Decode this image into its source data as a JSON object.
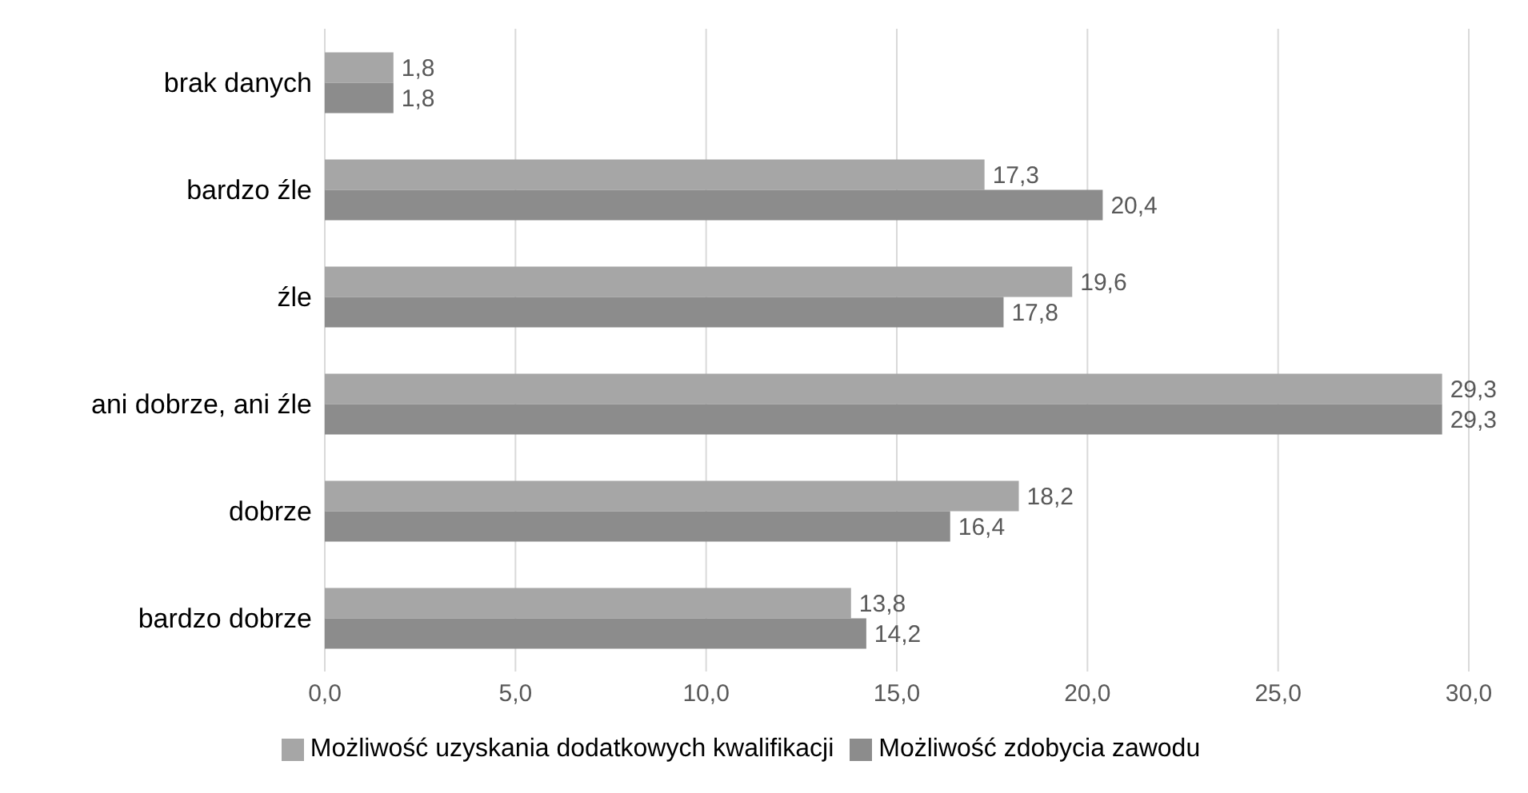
{
  "chart_data": {
    "type": "bar",
    "orientation": "horizontal",
    "categories": [
      "brak danych",
      "bardzo źle",
      "źle",
      "ani dobrze, ani źle",
      "dobrze",
      "bardzo dobrze"
    ],
    "series": [
      {
        "name": "Możliwość uzyskania dodatkowych kwalifikacji",
        "color": "#a6a6a6",
        "values": [
          1.8,
          17.3,
          19.6,
          29.3,
          18.2,
          13.8
        ],
        "value_labels": [
          "1,8",
          "17,3",
          "19,6",
          "29,3",
          "18,2",
          "13,8"
        ]
      },
      {
        "name": "Możliwość zdobycia zawodu",
        "color": "#8c8c8c",
        "values": [
          1.8,
          20.4,
          17.8,
          29.3,
          16.4,
          14.2
        ],
        "value_labels": [
          "1,8",
          "20,4",
          "17,8",
          "29,3",
          "16,4",
          "14,2"
        ]
      }
    ],
    "xlim": [
      0,
      30
    ],
    "xticks": [
      {
        "value": 0,
        "label": "0,0"
      },
      {
        "value": 5,
        "label": "5,0"
      },
      {
        "value": 10,
        "label": "10,0"
      },
      {
        "value": 15,
        "label": "15,0"
      },
      {
        "value": 20,
        "label": "20,0"
      },
      {
        "value": 25,
        "label": "25,0"
      },
      {
        "value": 30,
        "label": "30,0"
      }
    ],
    "grid": "x",
    "legend": "bottom"
  }
}
